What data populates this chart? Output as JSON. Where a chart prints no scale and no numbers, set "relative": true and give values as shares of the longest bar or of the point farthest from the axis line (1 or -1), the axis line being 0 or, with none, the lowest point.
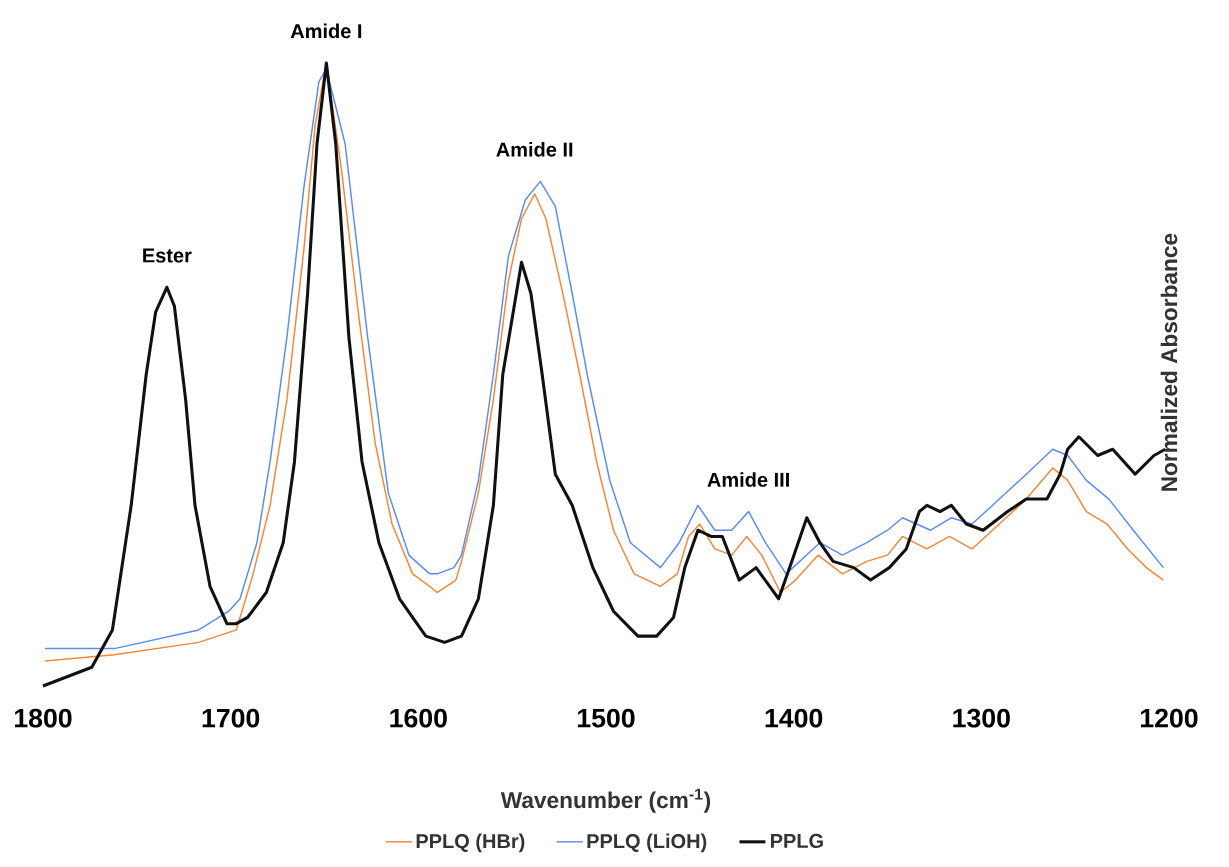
{
  "chart_data": {
    "type": "line",
    "relative": true,
    "xlabel": "Wavenumber (cm$^{-1}$)",
    "ylabel": "Normalized Absorbance",
    "legend": "bottom",
    "xlim": [
      1800,
      1200
    ],
    "xticks": [
      1800,
      1700,
      1600,
      1500,
      1400,
      1300,
      1200
    ],
    "annotations": [
      {
        "text": "Ester",
        "x": 1734,
        "y": 0.64
      },
      {
        "text": "Amide I",
        "x": 1649,
        "y": 1.0
      },
      {
        "text": "Amide II",
        "x": 1538,
        "y": 0.81
      },
      {
        "text": "Amide III",
        "x": 1424,
        "y": 0.28
      }
    ],
    "series": [
      {
        "name": "PPLQ (HBr)",
        "color": "#f4873a",
        "x": [
          1799,
          1762,
          1717,
          1697,
          1688,
          1679,
          1670,
          1661,
          1655,
          1649,
          1641,
          1632,
          1623,
          1614,
          1603,
          1594,
          1590,
          1580,
          1577,
          1568,
          1560,
          1552,
          1545,
          1538,
          1532,
          1523,
          1514,
          1505,
          1496,
          1485,
          1471,
          1462,
          1456,
          1450,
          1442,
          1433,
          1425,
          1417,
          1407,
          1399,
          1387,
          1374,
          1361,
          1350,
          1342,
          1329,
          1317,
          1305,
          1294,
          1276,
          1262,
          1254,
          1244,
          1233,
          1222,
          1212,
          1203
        ],
        "values": [
          0.04,
          0.05,
          0.07,
          0.09,
          0.18,
          0.29,
          0.46,
          0.7,
          0.9,
          1.0,
          0.83,
          0.6,
          0.39,
          0.26,
          0.18,
          0.16,
          0.15,
          0.17,
          0.2,
          0.31,
          0.46,
          0.65,
          0.75,
          0.79,
          0.75,
          0.63,
          0.5,
          0.36,
          0.25,
          0.18,
          0.16,
          0.18,
          0.24,
          0.26,
          0.22,
          0.21,
          0.24,
          0.21,
          0.15,
          0.17,
          0.21,
          0.18,
          0.2,
          0.21,
          0.24,
          0.22,
          0.24,
          0.22,
          0.25,
          0.3,
          0.35,
          0.33,
          0.28,
          0.26,
          0.22,
          0.19,
          0.17
        ]
      },
      {
        "name": "PPLQ (LiOH)",
        "color": "#5b8def",
        "x": [
          1799,
          1762,
          1717,
          1701,
          1695,
          1686,
          1679,
          1670,
          1661,
          1653,
          1649,
          1639,
          1627,
          1616,
          1605,
          1594,
          1590,
          1581,
          1577,
          1568,
          1560,
          1552,
          1543,
          1535,
          1527,
          1518,
          1510,
          1498,
          1487,
          1471,
          1461,
          1451,
          1442,
          1433,
          1424,
          1415,
          1404,
          1386,
          1374,
          1361,
          1350,
          1342,
          1327,
          1316,
          1305,
          1294,
          1276,
          1262,
          1254,
          1244,
          1232,
          1219,
          1203
        ],
        "values": [
          0.06,
          0.06,
          0.09,
          0.12,
          0.14,
          0.23,
          0.36,
          0.56,
          0.8,
          0.97,
          0.99,
          0.87,
          0.56,
          0.31,
          0.21,
          0.18,
          0.18,
          0.19,
          0.21,
          0.33,
          0.5,
          0.69,
          0.78,
          0.81,
          0.77,
          0.63,
          0.5,
          0.33,
          0.23,
          0.19,
          0.23,
          0.29,
          0.25,
          0.25,
          0.28,
          0.23,
          0.18,
          0.23,
          0.21,
          0.23,
          0.25,
          0.27,
          0.25,
          0.27,
          0.26,
          0.29,
          0.34,
          0.38,
          0.37,
          0.33,
          0.3,
          0.25,
          0.19
        ]
      },
      {
        "name": "PPLG",
        "color": "#111111",
        "x": [
          1800,
          1774,
          1763,
          1753,
          1745,
          1740,
          1734,
          1730,
          1724,
          1719,
          1711,
          1702,
          1697,
          1691,
          1681,
          1672,
          1666,
          1659,
          1654,
          1649,
          1644,
          1637,
          1630,
          1621,
          1610,
          1596,
          1586,
          1577,
          1568,
          1560,
          1555,
          1545,
          1540,
          1534,
          1527,
          1518,
          1507,
          1496,
          1483,
          1473,
          1464,
          1458,
          1451,
          1444,
          1438,
          1429,
          1420,
          1408,
          1401,
          1393,
          1386,
          1379,
          1368,
          1359,
          1349,
          1340,
          1333,
          1329,
          1322,
          1316,
          1308,
          1299,
          1286,
          1276,
          1265,
          1258,
          1254,
          1248,
          1238,
          1230,
          1218,
          1208,
          1202
        ],
        "values": [
          0,
          0.03,
          0.09,
          0.29,
          0.5,
          0.6,
          0.64,
          0.61,
          0.46,
          0.29,
          0.16,
          0.1,
          0.1,
          0.11,
          0.15,
          0.23,
          0.36,
          0.63,
          0.87,
          1.0,
          0.87,
          0.56,
          0.36,
          0.23,
          0.14,
          0.08,
          0.07,
          0.08,
          0.14,
          0.29,
          0.5,
          0.68,
          0.63,
          0.5,
          0.34,
          0.29,
          0.19,
          0.12,
          0.08,
          0.08,
          0.11,
          0.19,
          0.25,
          0.24,
          0.24,
          0.17,
          0.19,
          0.14,
          0.2,
          0.27,
          0.23,
          0.2,
          0.19,
          0.17,
          0.19,
          0.22,
          0.28,
          0.29,
          0.28,
          0.29,
          0.26,
          0.25,
          0.28,
          0.3,
          0.3,
          0.34,
          0.38,
          0.4,
          0.37,
          0.38,
          0.34,
          0.37,
          0.38
        ]
      }
    ]
  }
}
